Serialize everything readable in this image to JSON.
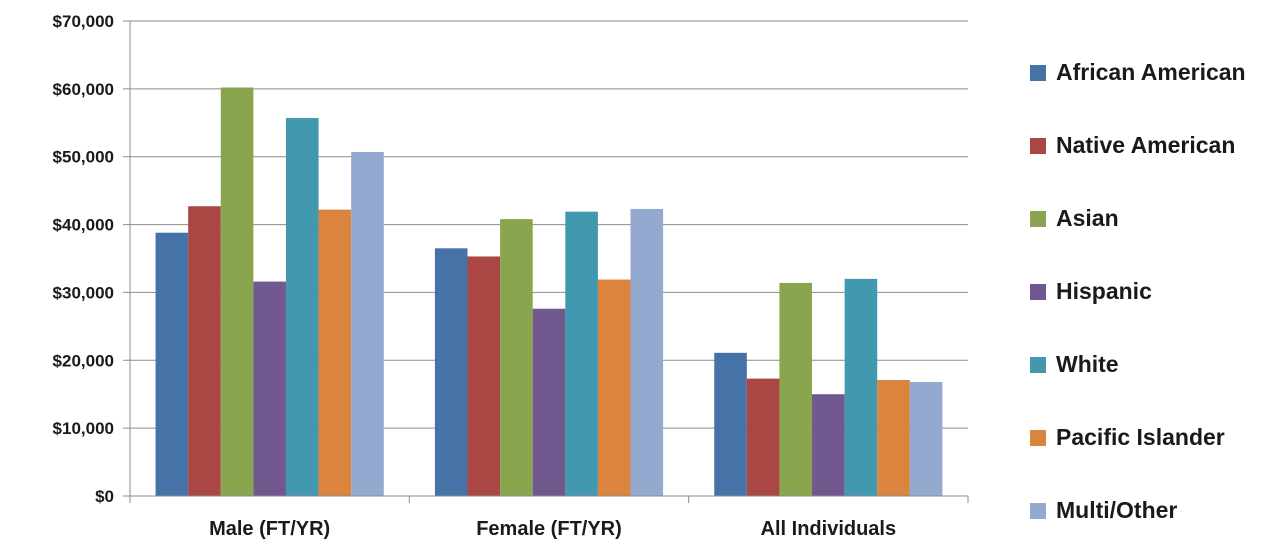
{
  "chart_data": {
    "type": "bar",
    "categories": [
      "Male (FT/YR)",
      "Female (FT/YR)",
      "All Individuals"
    ],
    "yticks": [
      "$0",
      "$10,000",
      "$20,000",
      "$30,000",
      "$40,000",
      "$50,000",
      "$60,000",
      "$70,000"
    ],
    "ylim": [
      0,
      70000
    ],
    "grid": true,
    "legend_position": "right",
    "series": [
      {
        "name": "African American",
        "color": "#4572A7",
        "values": [
          38800,
          36500,
          21100
        ]
      },
      {
        "name": "Native American",
        "color": "#AA4643",
        "values": [
          42700,
          35300,
          17300
        ]
      },
      {
        "name": "Asian",
        "color": "#89A54E",
        "values": [
          60200,
          40800,
          31400
        ]
      },
      {
        "name": "Hispanic",
        "color": "#71588F",
        "values": [
          31600,
          27600,
          15000
        ]
      },
      {
        "name": "White",
        "color": "#4198AF",
        "values": [
          55700,
          41900,
          32000
        ]
      },
      {
        "name": "Pacific Islander",
        "color": "#DB843D",
        "values": [
          42200,
          31900,
          17100
        ]
      },
      {
        "name": "Multi/Other",
        "color": "#93A9CF",
        "values": [
          50700,
          42300,
          16800
        ]
      }
    ]
  }
}
